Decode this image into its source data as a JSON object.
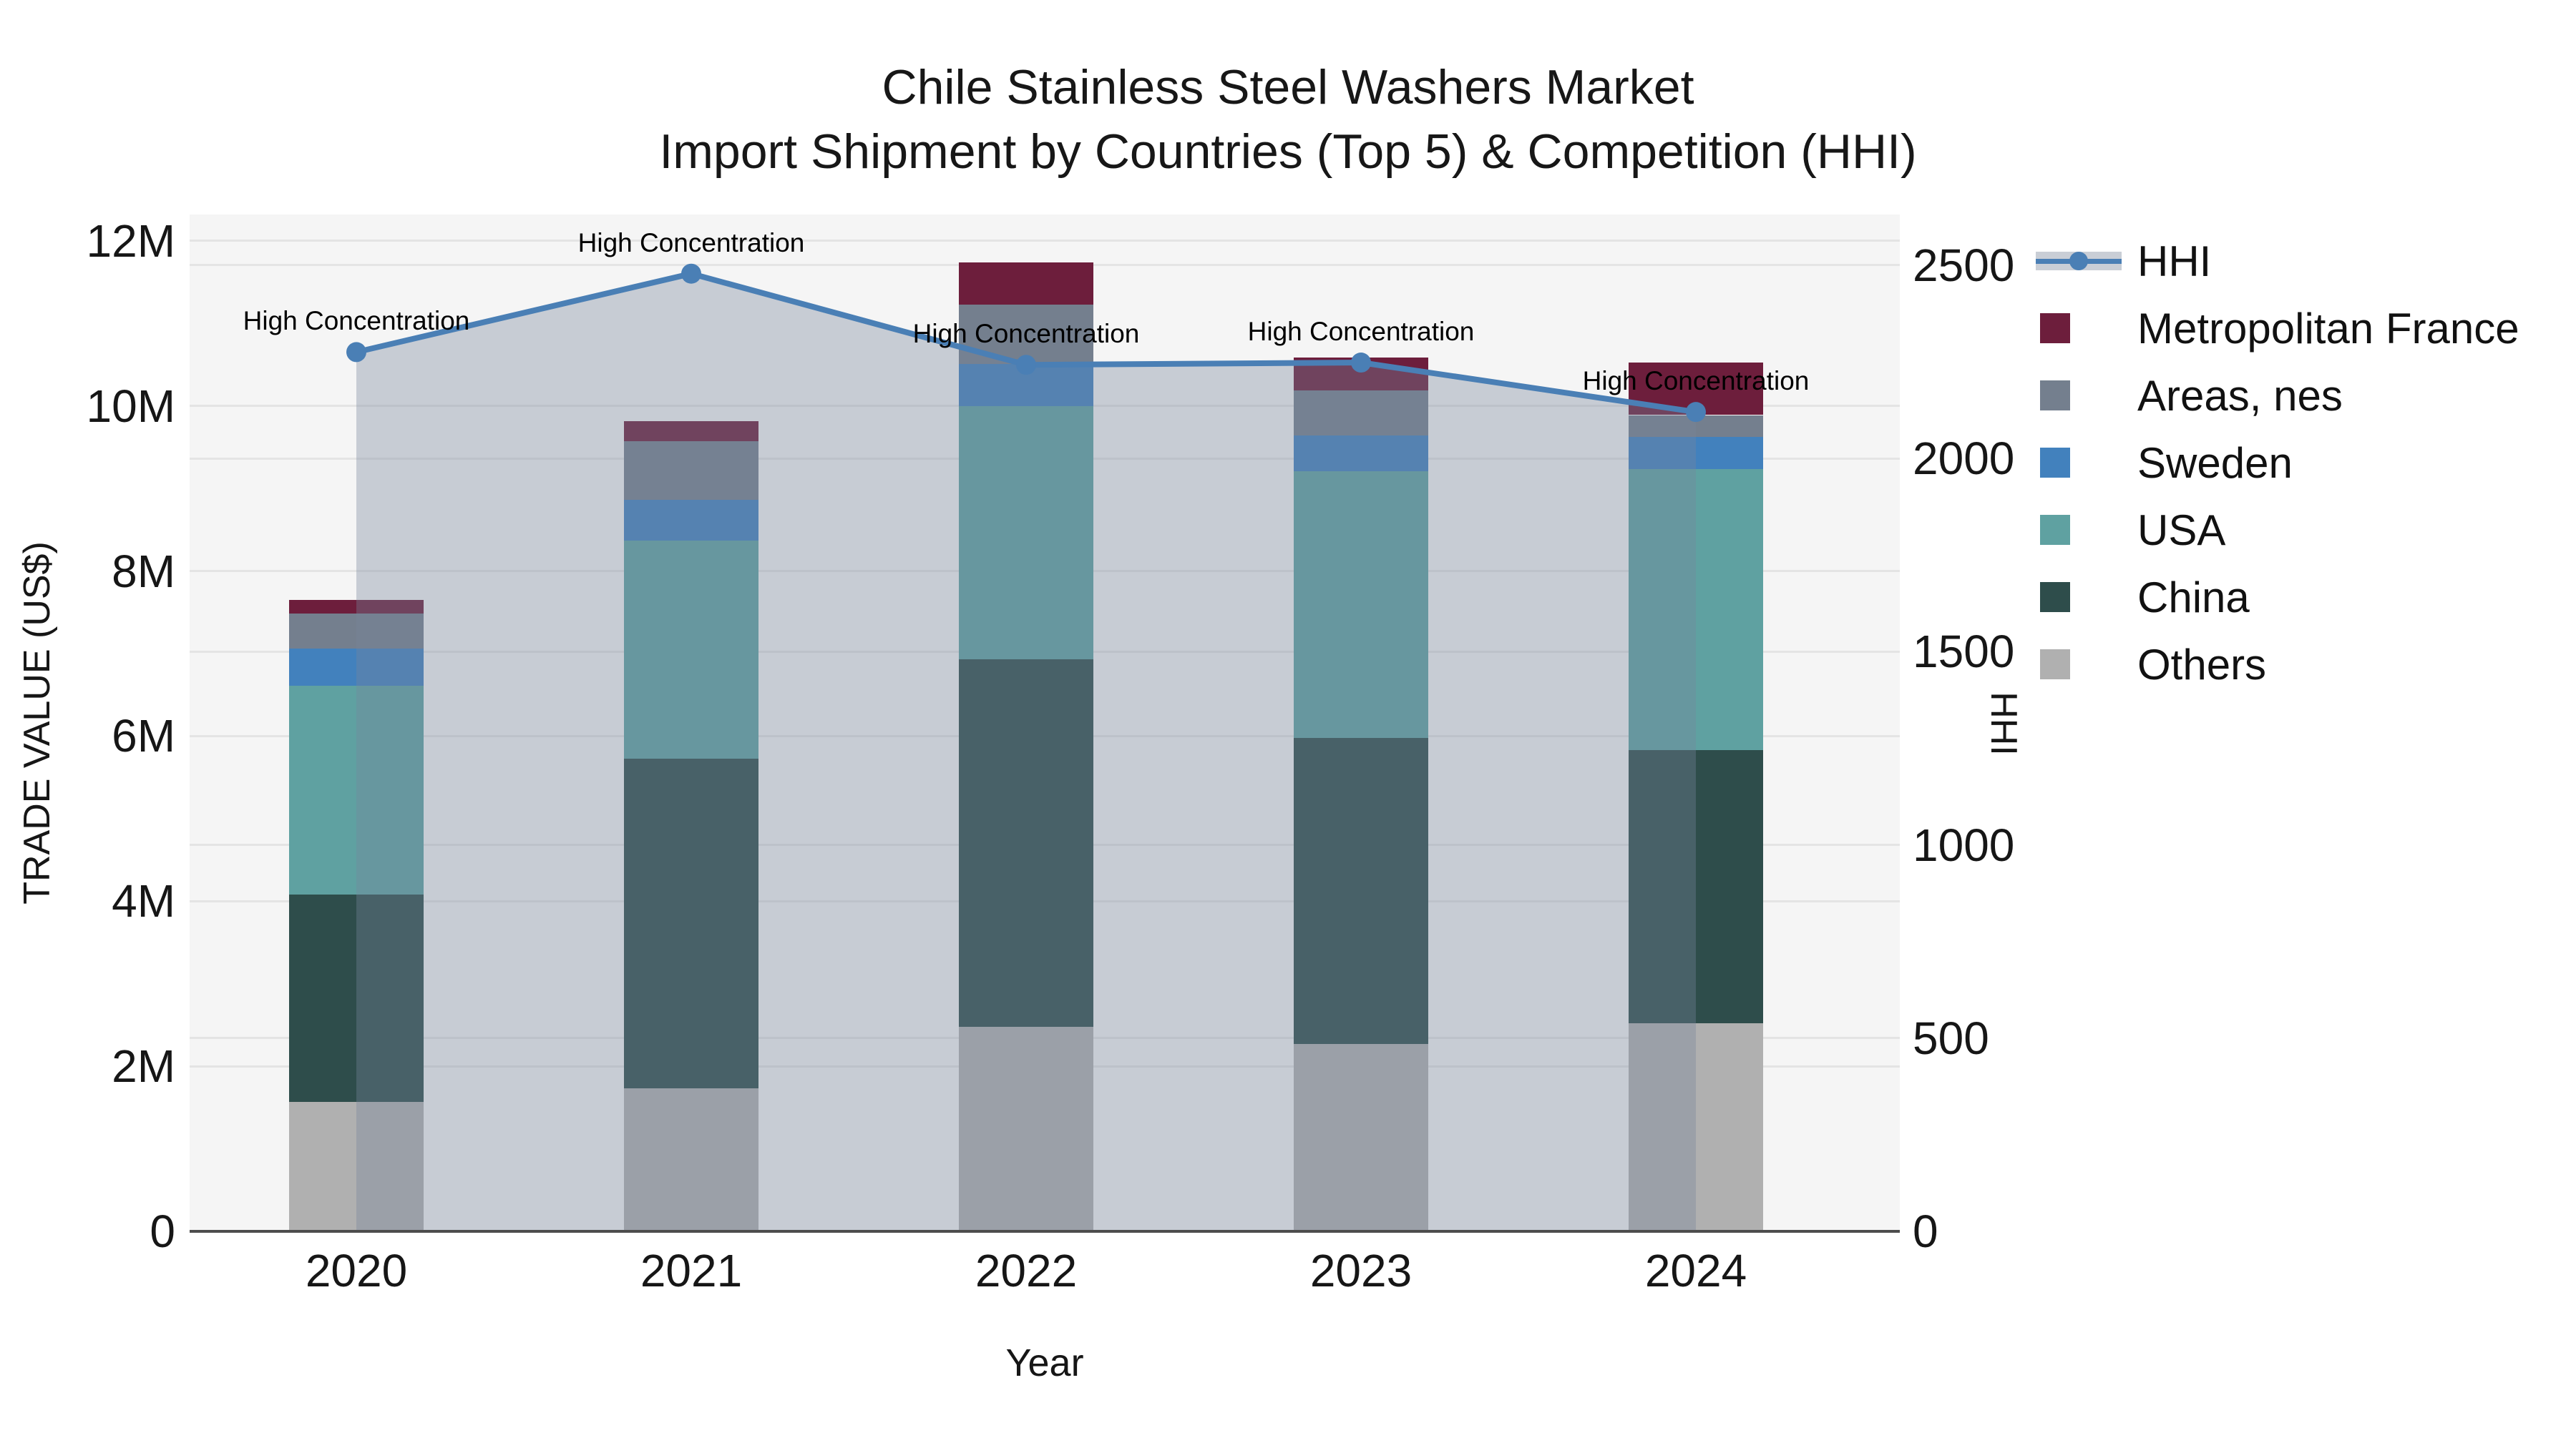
{
  "title": {
    "line1": "Chile Stainless Steel Washers Market",
    "line2": "Import Shipment by Countries (Top 5) & Competition (HHI)"
  },
  "chart_data": {
    "type": "bar",
    "subtype": "stacked-bars-with-line-overlay",
    "categories": [
      "2020",
      "2021",
      "2022",
      "2023",
      "2024"
    ],
    "unit": "million US$",
    "series": [
      {
        "name": "Others",
        "color": "#b0b0b0",
        "values": [
          1.57,
          1.73,
          2.48,
          2.27,
          2.52
        ]
      },
      {
        "name": "China",
        "color": "#2e4d4b",
        "values": [
          2.51,
          4.0,
          4.45,
          3.71,
          3.31
        ]
      },
      {
        "name": "USA",
        "color": "#5fa1a1",
        "values": [
          2.53,
          2.64,
          3.07,
          3.23,
          3.41
        ]
      },
      {
        "name": "Sweden",
        "color": "#4281bd",
        "values": [
          0.45,
          0.49,
          0.51,
          0.43,
          0.39
        ]
      },
      {
        "name": "Areas, nes",
        "color": "#747f8e",
        "values": [
          0.43,
          0.71,
          0.72,
          0.55,
          0.26
        ]
      },
      {
        "name": "Metropolitan France",
        "color": "#6d1e3c",
        "values": [
          0.16,
          0.25,
          0.51,
          0.4,
          0.64
        ]
      }
    ],
    "line": {
      "name": "HHI",
      "color": "#4a7fb5",
      "area_fill_color": "rgba(120,134,156,0.36)",
      "values": [
        2275,
        2478,
        2242,
        2248,
        2120
      ],
      "annotations": [
        "High Concentration",
        "High Concentration",
        "High Concentration",
        "High Concentration",
        "High Concentration"
      ]
    },
    "x": {
      "title": "Year"
    },
    "y_left": {
      "title": "TRADE VALUE (US$)",
      "ticks": [
        "0",
        "2M",
        "4M",
        "6M",
        "8M",
        "10M",
        "12M"
      ],
      "tick_values": [
        0,
        2,
        4,
        6,
        8,
        10,
        12
      ],
      "max": 12.32
    },
    "y_right": {
      "title": "HHI",
      "ticks": [
        "0",
        "500",
        "1000",
        "1500",
        "2000",
        "2500"
      ],
      "tick_values": [
        0,
        500,
        1000,
        1500,
        2000,
        2500
      ],
      "max": 2631
    },
    "legend": [
      {
        "label": "HHI",
        "type": "line",
        "color": "#4a7fb5",
        "band_color": "#c9ced6"
      },
      {
        "label": "Metropolitan France",
        "type": "swatch",
        "color": "#6d1e3c"
      },
      {
        "label": "Areas, nes",
        "type": "swatch",
        "color": "#747f8e"
      },
      {
        "label": "Sweden",
        "type": "swatch",
        "color": "#4281bd"
      },
      {
        "label": "USA",
        "type": "swatch",
        "color": "#5fa1a1"
      },
      {
        "label": "China",
        "type": "swatch",
        "color": "#2e4d4b"
      },
      {
        "label": "Others",
        "type": "swatch",
        "color": "#b0b0b0"
      }
    ],
    "grid": true,
    "legend_position": "right"
  }
}
